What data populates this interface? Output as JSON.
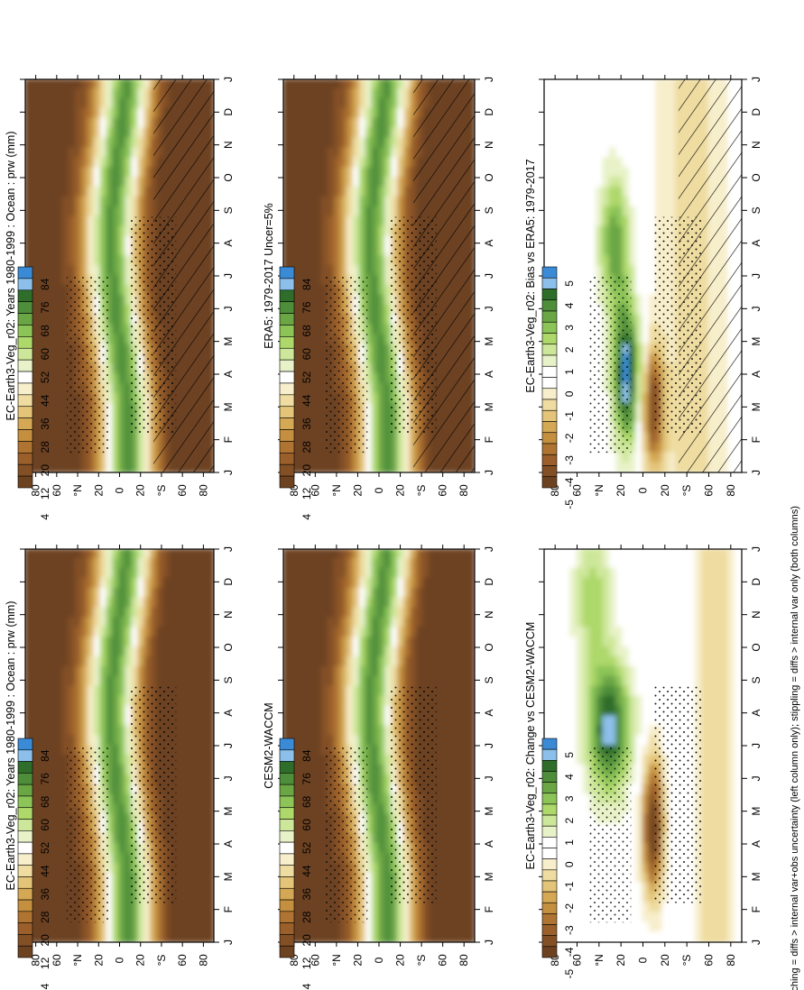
{
  "figure": {
    "footnote": "hatching = diffs > internal var+obs uncertainty (left column only); stippling = diffs > internal var only (both columns)"
  },
  "chart_data": [
    {
      "type": "heatmap",
      "id": "p1",
      "title": "EC-Earth3-Veg_r02: Years 1980-1999 : Ocean : prw (mm)",
      "x": [
        "J",
        "F",
        "M",
        "A",
        "M",
        "J",
        "J",
        "A",
        "S",
        "O",
        "N",
        "D",
        "J"
      ],
      "y_ticks": [
        "80",
        "60",
        "°N",
        "20",
        "0",
        "20",
        "°S",
        "60",
        "80"
      ],
      "y_values": [
        80,
        60,
        40,
        20,
        0,
        -20,
        -40,
        -60,
        -80
      ],
      "colorbar_labels": [
        "84",
        "76",
        "68",
        "60",
        "52",
        "44",
        "36",
        "28",
        "20",
        "12",
        "4"
      ],
      "variable": "prw",
      "units": "mm",
      "overlays": [
        "stippling",
        "hatching"
      ]
    },
    {
      "type": "heatmap",
      "id": "p2",
      "title": "EC-Earth3-Veg_r02: Years 1980-1999 : Ocean : prw (mm)",
      "x": [
        "J",
        "F",
        "M",
        "A",
        "M",
        "J",
        "J",
        "A",
        "S",
        "O",
        "N",
        "D",
        "J"
      ],
      "y_ticks": [
        "80",
        "60",
        "°N",
        "20",
        "0",
        "20",
        "°S",
        "60",
        "80"
      ],
      "y_values": [
        80,
        60,
        40,
        20,
        0,
        -20,
        -40,
        -60,
        -80
      ],
      "colorbar_labels": [
        "84",
        "76",
        "68",
        "60",
        "52",
        "44",
        "36",
        "28",
        "20",
        "12",
        "4"
      ],
      "variable": "prw",
      "units": "mm",
      "overlays": [
        "stippling"
      ]
    },
    {
      "type": "heatmap",
      "id": "p3",
      "title": "ERA5: 1979-2017 Uncer=5%",
      "x": [
        "J",
        "F",
        "M",
        "A",
        "M",
        "J",
        "J",
        "A",
        "S",
        "O",
        "N",
        "D",
        "J"
      ],
      "y_ticks": [
        "80",
        "60",
        "°N",
        "20",
        "0",
        "20",
        "°S",
        "60",
        "80"
      ],
      "y_values": [
        80,
        60,
        40,
        20,
        0,
        -20,
        -40,
        -60,
        -80
      ],
      "colorbar_labels": [
        "84",
        "76",
        "68",
        "60",
        "52",
        "44",
        "36",
        "28",
        "20",
        "12",
        "4"
      ],
      "variable": "prw",
      "units": "mm",
      "overlays": [
        "stippling",
        "hatching"
      ]
    },
    {
      "type": "heatmap",
      "id": "p4",
      "title": "CESM2-WACCM",
      "x": [
        "J",
        "F",
        "M",
        "A",
        "M",
        "J",
        "J",
        "A",
        "S",
        "O",
        "N",
        "D",
        "J"
      ],
      "y_ticks": [
        "80",
        "60",
        "°N",
        "20",
        "0",
        "20",
        "°S",
        "60",
        "80"
      ],
      "y_values": [
        80,
        60,
        40,
        20,
        0,
        -20,
        -40,
        -60,
        -80
      ],
      "colorbar_labels": [
        "84",
        "76",
        "68",
        "60",
        "52",
        "44",
        "36",
        "28",
        "20",
        "12",
        "4"
      ],
      "variable": "prw",
      "units": "mm",
      "overlays": [
        "stippling"
      ]
    },
    {
      "type": "heatmap",
      "id": "p5",
      "title": "EC-Earth3-Veg_r02: Bias vs ERA5: 1979-2017",
      "x": [
        "J",
        "F",
        "M",
        "A",
        "M",
        "J",
        "J",
        "A",
        "S",
        "O",
        "N",
        "D",
        "J"
      ],
      "y_ticks": [
        "80",
        "60",
        "°N",
        "20",
        "0",
        "20",
        "°S",
        "60",
        "80"
      ],
      "y_values": [
        80,
        60,
        40,
        20,
        0,
        -20,
        -40,
        -60,
        -80
      ],
      "colorbar_labels": [
        "5",
        "4",
        "3",
        "2",
        "1",
        "0",
        "-1",
        "-2",
        "-3",
        "-4",
        "-5"
      ],
      "variable": "prw difference",
      "units": "mm",
      "overlays": [
        "stippling",
        "hatching"
      ]
    },
    {
      "type": "heatmap",
      "id": "p6",
      "title": "EC-Earth3-Veg_r02: Change vs CESM2-WACCM",
      "x": [
        "J",
        "F",
        "M",
        "A",
        "M",
        "J",
        "J",
        "A",
        "S",
        "O",
        "N",
        "D",
        "J"
      ],
      "y_ticks": [
        "80",
        "60",
        "°N",
        "20",
        "0",
        "20",
        "°S",
        "60",
        "80"
      ],
      "y_values": [
        80,
        60,
        40,
        20,
        0,
        -20,
        -40,
        -60,
        -80
      ],
      "colorbar_labels": [
        "5",
        "4",
        "3",
        "2",
        "1",
        "0",
        "-1",
        "-2",
        "-3",
        "-4",
        "-5"
      ],
      "variable": "prw difference",
      "units": "mm",
      "overlays": [
        "stippling"
      ]
    }
  ],
  "colors": {
    "abs_scale": [
      "#3a8ad6",
      "#8cc0ea",
      "#2f6d2a",
      "#4e8d3a",
      "#6ba644",
      "#8cc458",
      "#add86a",
      "#cde79a",
      "#e8f2c8",
      "#ffffff",
      "#f7eecb",
      "#eedca0",
      "#e3c478",
      "#d4a854",
      "#c48f3e",
      "#b07432",
      "#9a5f2a",
      "#835026",
      "#6d4221"
    ],
    "diff_scale": [
      "#3a8ad6",
      "#8cc0ea",
      "#2f6d2a",
      "#4e8d3a",
      "#6ba644",
      "#8cc458",
      "#add86a",
      "#cde79a",
      "#e8f2c8",
      "#ffffff",
      "#ffffff",
      "#f7eecb",
      "#eedca0",
      "#e3c478",
      "#d4a854",
      "#c48f3e",
      "#b07432",
      "#9a5f2a",
      "#835026",
      "#6d4221"
    ]
  }
}
